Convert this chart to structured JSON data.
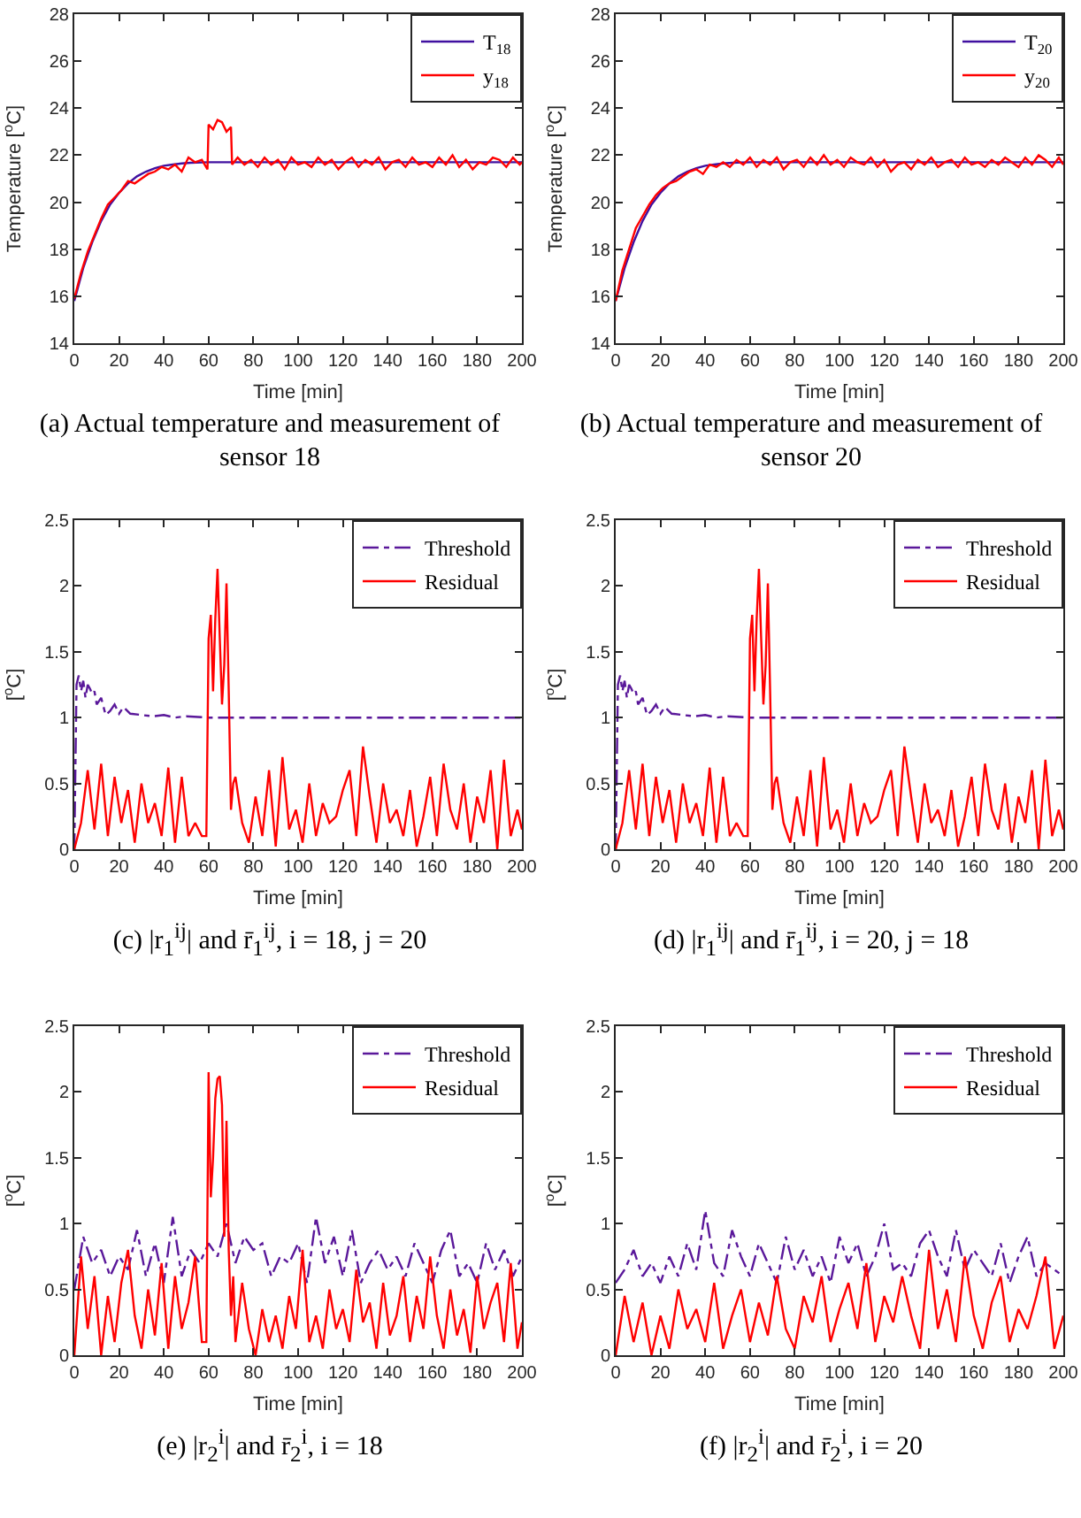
{
  "chart_data": [
    {
      "type": "line",
      "xlabel": "Time [min]",
      "ylabel": "Temperature [$^{o}$C]",
      "xlim": [
        0,
        200
      ],
      "xticks": [
        0,
        20,
        40,
        60,
        80,
        100,
        120,
        140,
        160,
        180,
        200
      ],
      "ylim": [
        14,
        28
      ],
      "yticks": [
        14,
        16,
        18,
        20,
        22,
        24,
        26,
        28
      ],
      "grid": false,
      "legend": "top right",
      "annotations": [
        "(a) Actual temperature and measurement of sensor 18"
      ],
      "series": [
        {
          "name": "T$_{18}$",
          "color": "#4010a0",
          "line_style": "solid",
          "x": [
            0,
            4,
            8,
            12,
            16,
            20,
            24,
            28,
            32,
            36,
            40,
            44,
            48,
            52,
            60,
            80,
            100,
            120,
            140,
            160,
            180,
            200
          ],
          "values": [
            15.8,
            17.2,
            18.3,
            19.2,
            19.9,
            20.4,
            20.8,
            21.1,
            21.3,
            21.45,
            21.55,
            21.6,
            21.65,
            21.68,
            21.7,
            21.7,
            21.7,
            21.7,
            21.7,
            21.7,
            21.7,
            21.7
          ]
        },
        {
          "name": "y$_{18}$",
          "color": "#ff0000",
          "line_style": "solid",
          "x": [
            0,
            3,
            6,
            9,
            12,
            15,
            18,
            21,
            24,
            27,
            30,
            33,
            36,
            39,
            42,
            45,
            48,
            51,
            54,
            57,
            59.5,
            60,
            62,
            64,
            66,
            68,
            70,
            70.5,
            73,
            76,
            79,
            82,
            85,
            88,
            91,
            94,
            97,
            100,
            103,
            106,
            109,
            112,
            115,
            118,
            121,
            124,
            127,
            130,
            133,
            136,
            139,
            142,
            145,
            148,
            151,
            154,
            157,
            160,
            163,
            166,
            169,
            172,
            175,
            178,
            181,
            184,
            187,
            190,
            193,
            196,
            199,
            200
          ],
          "values": [
            15.9,
            17.0,
            17.9,
            18.6,
            19.3,
            19.9,
            20.2,
            20.5,
            20.9,
            20.8,
            21.0,
            21.2,
            21.3,
            21.5,
            21.4,
            21.6,
            21.3,
            21.9,
            21.7,
            21.8,
            21.4,
            23.3,
            23.1,
            23.5,
            23.4,
            23.0,
            23.2,
            21.6,
            21.9,
            21.6,
            21.8,
            21.5,
            21.9,
            21.6,
            21.8,
            21.4,
            21.9,
            21.6,
            21.7,
            21.5,
            21.9,
            21.6,
            21.8,
            21.4,
            21.7,
            21.9,
            21.5,
            21.8,
            21.6,
            21.9,
            21.4,
            21.7,
            21.8,
            21.5,
            21.9,
            21.6,
            21.7,
            21.5,
            21.9,
            21.6,
            22.0,
            21.5,
            21.8,
            21.4,
            21.7,
            21.6,
            21.9,
            21.8,
            21.5,
            21.9,
            21.6,
            21.7
          ]
        }
      ]
    },
    {
      "type": "line",
      "xlabel": "Time [min]",
      "ylabel": "Temperature [$^{o}$C]",
      "xlim": [
        0,
        200
      ],
      "xticks": [
        0,
        20,
        40,
        60,
        80,
        100,
        120,
        140,
        160,
        180,
        200
      ],
      "ylim": [
        14,
        28
      ],
      "yticks": [
        14,
        16,
        18,
        20,
        22,
        24,
        26,
        28
      ],
      "grid": false,
      "legend": "top right",
      "annotations": [
        "(b) Actual temperature and measurement of sensor 20"
      ],
      "series": [
        {
          "name": "T$_{20}$",
          "color": "#4010a0",
          "line_style": "solid",
          "x": [
            0,
            4,
            8,
            12,
            16,
            20,
            24,
            28,
            32,
            36,
            40,
            44,
            48,
            52,
            60,
            80,
            100,
            120,
            140,
            160,
            180,
            200
          ],
          "values": [
            15.8,
            17.2,
            18.3,
            19.2,
            19.9,
            20.4,
            20.8,
            21.1,
            21.3,
            21.45,
            21.55,
            21.6,
            21.65,
            21.68,
            21.7,
            21.7,
            21.7,
            21.7,
            21.7,
            21.7,
            21.7,
            21.7
          ]
        },
        {
          "name": "y$_{20}$",
          "color": "#ff0000",
          "line_style": "solid",
          "x": [
            0,
            3,
            6,
            9,
            12,
            15,
            18,
            21,
            24,
            27,
            30,
            33,
            36,
            39,
            42,
            45,
            48,
            51,
            54,
            57,
            60,
            63,
            66,
            69,
            72,
            75,
            78,
            81,
            84,
            87,
            90,
            93,
            96,
            99,
            102,
            105,
            108,
            111,
            114,
            117,
            120,
            123,
            126,
            129,
            132,
            135,
            138,
            141,
            144,
            147,
            150,
            153,
            156,
            159,
            162,
            165,
            168,
            171,
            174,
            177,
            180,
            183,
            186,
            189,
            192,
            195,
            198,
            200
          ],
          "values": [
            15.8,
            17.1,
            18.0,
            18.9,
            19.4,
            19.9,
            20.3,
            20.6,
            20.8,
            20.9,
            21.1,
            21.3,
            21.4,
            21.2,
            21.6,
            21.5,
            21.7,
            21.5,
            21.8,
            21.6,
            21.9,
            21.5,
            21.8,
            21.6,
            21.9,
            21.4,
            21.7,
            21.8,
            21.5,
            21.9,
            21.6,
            22.0,
            21.6,
            21.8,
            21.5,
            21.9,
            21.7,
            21.6,
            21.9,
            21.5,
            21.8,
            21.3,
            21.6,
            21.7,
            21.4,
            21.8,
            21.6,
            21.9,
            21.5,
            21.7,
            21.8,
            21.5,
            21.9,
            21.6,
            21.7,
            21.5,
            21.8,
            21.6,
            21.9,
            21.7,
            21.5,
            21.9,
            21.6,
            22.0,
            21.8,
            21.5,
            21.9,
            21.6
          ]
        }
      ]
    },
    {
      "type": "line",
      "xlabel": "Time [min]",
      "ylabel": "[$^{o}$C]",
      "xlim": [
        0,
        200
      ],
      "xticks": [
        0,
        20,
        40,
        60,
        80,
        100,
        120,
        140,
        160,
        180,
        200
      ],
      "ylim": [
        0,
        2.5
      ],
      "yticks": [
        0,
        0.5,
        1,
        1.5,
        2,
        2.5
      ],
      "grid": false,
      "legend": "top right",
      "annotations": [
        "(c) |r$_{1}$$^{ij}$| and r̄$_{1}$$^{ij}$, i = 18, j = 20"
      ],
      "series": [
        {
          "name": "Threshold",
          "color": "#5a189a",
          "line_style": "dashdot",
          "x": [
            0,
            1,
            2,
            3,
            4,
            5,
            6,
            7,
            8,
            9,
            10,
            12,
            14,
            16,
            18,
            20,
            22,
            25,
            30,
            35,
            40,
            45,
            50,
            60,
            100,
            150,
            200
          ],
          "values": [
            0,
            1.25,
            1.32,
            1.2,
            1.28,
            1.15,
            1.25,
            1.22,
            1.18,
            1.2,
            1.1,
            1.15,
            1.02,
            1.05,
            1.1,
            1.03,
            1.08,
            1.03,
            1.02,
            1.01,
            1.02,
            1.0,
            1.01,
            1.0,
            1.0,
            1.0,
            1.0
          ]
        },
        {
          "name": "Residual",
          "color": "#ff0000",
          "line_style": "solid",
          "x": [
            0,
            3,
            6,
            9,
            12,
            15,
            18,
            21,
            24,
            27,
            30,
            33,
            36,
            39,
            42,
            45,
            48,
            51,
            54,
            57,
            59,
            60,
            61,
            62,
            63,
            64,
            65,
            66,
            67,
            68,
            69,
            70,
            71,
            72,
            75,
            78,
            81,
            84,
            87,
            90,
            93,
            96,
            99,
            102,
            105,
            108,
            111,
            114,
            117,
            120,
            123,
            126,
            129,
            132,
            135,
            138,
            141,
            144,
            147,
            150,
            153,
            156,
            159,
            162,
            165,
            168,
            171,
            174,
            177,
            180,
            183,
            186,
            189,
            192,
            195,
            198,
            200
          ],
          "values": [
            0,
            0.2,
            0.6,
            0.15,
            0.65,
            0.1,
            0.55,
            0.2,
            0.45,
            0.05,
            0.5,
            0.2,
            0.35,
            0.1,
            0.62,
            0.05,
            0.55,
            0.1,
            0.2,
            0.1,
            0.1,
            1.6,
            1.78,
            1.2,
            1.75,
            2.13,
            1.6,
            1.1,
            1.4,
            2.02,
            1.2,
            0.3,
            0.5,
            0.55,
            0.2,
            0.05,
            0.4,
            0.1,
            0.6,
            0.02,
            0.7,
            0.15,
            0.3,
            0.05,
            0.5,
            0.1,
            0.35,
            0.2,
            0.25,
            0.45,
            0.6,
            0.1,
            0.78,
            0.4,
            0.05,
            0.5,
            0.2,
            0.3,
            0.1,
            0.45,
            0.02,
            0.25,
            0.55,
            0.1,
            0.65,
            0.3,
            0.15,
            0.5,
            0.05,
            0.4,
            0.2,
            0.6,
            0.0,
            0.68,
            0.1,
            0.3,
            0.15
          ]
        }
      ]
    },
    {
      "type": "line",
      "xlabel": "Time [min]",
      "ylabel": "[$^{o}$C]",
      "xlim": [
        0,
        200
      ],
      "xticks": [
        0,
        20,
        40,
        60,
        80,
        100,
        120,
        140,
        160,
        180,
        200
      ],
      "ylim": [
        0,
        2.5
      ],
      "yticks": [
        0,
        0.5,
        1,
        1.5,
        2,
        2.5
      ],
      "grid": false,
      "legend": "top right",
      "annotations": [
        "(d) |r$_{1}$$^{ij}$| and r̄$_{1}$$^{ij}$, i = 20, j = 18"
      ],
      "series": [
        {
          "name": "Threshold",
          "color": "#5a189a",
          "line_style": "dashdot",
          "x": [
            0,
            1,
            2,
            3,
            4,
            5,
            6,
            7,
            8,
            9,
            10,
            12,
            14,
            16,
            18,
            20,
            22,
            25,
            30,
            35,
            40,
            45,
            50,
            60,
            100,
            150,
            200
          ],
          "values": [
            0,
            1.25,
            1.32,
            1.2,
            1.28,
            1.15,
            1.25,
            1.22,
            1.18,
            1.2,
            1.1,
            1.15,
            1.02,
            1.05,
            1.1,
            1.03,
            1.08,
            1.03,
            1.02,
            1.01,
            1.02,
            1.0,
            1.01,
            1.0,
            1.0,
            1.0,
            1.0
          ]
        },
        {
          "name": "Residual",
          "color": "#ff0000",
          "line_style": "solid",
          "x": [
            0,
            3,
            6,
            9,
            12,
            15,
            18,
            21,
            24,
            27,
            30,
            33,
            36,
            39,
            42,
            45,
            48,
            51,
            54,
            57,
            59,
            60,
            61,
            62,
            63,
            64,
            65,
            66,
            67,
            68,
            69,
            70,
            71,
            72,
            75,
            78,
            81,
            84,
            87,
            90,
            93,
            96,
            99,
            102,
            105,
            108,
            111,
            114,
            117,
            120,
            123,
            126,
            129,
            132,
            135,
            138,
            141,
            144,
            147,
            150,
            153,
            156,
            159,
            162,
            165,
            168,
            171,
            174,
            177,
            180,
            183,
            186,
            189,
            192,
            195,
            198,
            200
          ],
          "values": [
            0,
            0.2,
            0.6,
            0.15,
            0.65,
            0.1,
            0.55,
            0.2,
            0.45,
            0.05,
            0.5,
            0.2,
            0.35,
            0.1,
            0.62,
            0.05,
            0.55,
            0.1,
            0.2,
            0.1,
            0.1,
            1.6,
            1.78,
            1.2,
            1.75,
            2.13,
            1.6,
            1.1,
            1.4,
            2.02,
            1.2,
            0.3,
            0.5,
            0.55,
            0.2,
            0.05,
            0.4,
            0.1,
            0.6,
            0.02,
            0.7,
            0.15,
            0.3,
            0.05,
            0.5,
            0.1,
            0.35,
            0.2,
            0.25,
            0.45,
            0.6,
            0.1,
            0.78,
            0.4,
            0.05,
            0.5,
            0.2,
            0.3,
            0.1,
            0.45,
            0.02,
            0.25,
            0.55,
            0.1,
            0.65,
            0.3,
            0.15,
            0.5,
            0.05,
            0.4,
            0.2,
            0.6,
            0.0,
            0.68,
            0.1,
            0.3,
            0.15
          ]
        }
      ]
    },
    {
      "type": "line",
      "xlabel": "Time [min]",
      "ylabel": "[$^{o}$C]",
      "xlim": [
        0,
        200
      ],
      "xticks": [
        0,
        20,
        40,
        60,
        80,
        100,
        120,
        140,
        160,
        180,
        200
      ],
      "ylim": [
        0,
        2.5
      ],
      "yticks": [
        0,
        0.5,
        1,
        1.5,
        2,
        2.5
      ],
      "grid": false,
      "legend": "top right",
      "annotations": [
        "(e) |r$_{2}$$^{i}$| and r̄$_{2}$$^{i}$, i = 18"
      ],
      "series": [
        {
          "name": "Threshold",
          "color": "#5a189a",
          "line_style": "dashdot",
          "x": [
            0,
            4,
            8,
            12,
            16,
            20,
            24,
            28,
            32,
            36,
            40,
            44,
            48,
            52,
            56,
            60,
            64,
            68,
            72,
            76,
            80,
            84,
            88,
            92,
            96,
            100,
            104,
            108,
            112,
            116,
            120,
            124,
            128,
            132,
            136,
            140,
            144,
            148,
            152,
            156,
            160,
            164,
            168,
            172,
            176,
            180,
            184,
            188,
            192,
            196,
            200
          ],
          "values": [
            0.5,
            0.9,
            0.7,
            0.8,
            0.6,
            0.75,
            0.65,
            0.95,
            0.6,
            0.85,
            0.55,
            1.05,
            0.6,
            0.8,
            0.7,
            0.85,
            0.75,
            1.0,
            0.7,
            0.9,
            0.8,
            0.85,
            0.6,
            0.75,
            0.7,
            0.85,
            0.55,
            1.05,
            0.7,
            0.9,
            0.6,
            0.95,
            0.55,
            0.7,
            0.8,
            0.65,
            0.75,
            0.6,
            0.85,
            0.7,
            0.55,
            0.8,
            0.95,
            0.6,
            0.7,
            0.55,
            0.85,
            0.65,
            0.8,
            0.6,
            0.75
          ]
        },
        {
          "name": "Residual",
          "color": "#ff0000",
          "line_style": "solid",
          "x": [
            0,
            3,
            6,
            9,
            12,
            15,
            18,
            21,
            24,
            27,
            30,
            33,
            36,
            39,
            42,
            45,
            48,
            51,
            54,
            57,
            59,
            60,
            61,
            62,
            63,
            64,
            65,
            66,
            67,
            68,
            69,
            70,
            71,
            72,
            75,
            78,
            81,
            84,
            87,
            90,
            93,
            96,
            99,
            102,
            105,
            108,
            111,
            114,
            117,
            120,
            123,
            126,
            129,
            132,
            135,
            138,
            141,
            144,
            147,
            150,
            153,
            156,
            159,
            162,
            165,
            168,
            171,
            174,
            177,
            180,
            183,
            186,
            189,
            192,
            195,
            198,
            200
          ],
          "values": [
            0,
            0.75,
            0.2,
            0.6,
            0.0,
            0.45,
            0.1,
            0.55,
            0.8,
            0.3,
            0.05,
            0.5,
            0.15,
            0.7,
            0.05,
            0.6,
            0.2,
            0.4,
            0.75,
            0.1,
            0.1,
            2.15,
            1.2,
            1.5,
            1.95,
            2.1,
            2.12,
            1.9,
            0.9,
            1.78,
            0.8,
            0.3,
            0.6,
            0.1,
            0.55,
            0.2,
            0.0,
            0.35,
            0.1,
            0.3,
            0.05,
            0.45,
            0.2,
            0.8,
            0.1,
            0.3,
            0.05,
            0.5,
            0.2,
            0.35,
            0.1,
            0.65,
            0.25,
            0.4,
            0.05,
            0.55,
            0.15,
            0.3,
            0.6,
            0.1,
            0.45,
            0.2,
            0.75,
            0.3,
            0.05,
            0.5,
            0.15,
            0.35,
            0.02,
            0.6,
            0.2,
            0.4,
            0.55,
            0.1,
            0.7,
            0.05,
            0.25
          ]
        }
      ]
    },
    {
      "type": "line",
      "xlabel": "Time [min]",
      "ylabel": "[$^{o}$C]",
      "xlim": [
        0,
        200
      ],
      "xticks": [
        0,
        20,
        40,
        60,
        80,
        100,
        120,
        140,
        160,
        180,
        200
      ],
      "ylim": [
        0,
        2.5
      ],
      "yticks": [
        0,
        0.5,
        1,
        1.5,
        2,
        2.5
      ],
      "grid": false,
      "legend": "top right",
      "annotations": [
        "(f) |r$_{2}$$^{i}$| and r̄$_{2}$$^{i}$, i = 20"
      ],
      "series": [
        {
          "name": "Threshold",
          "color": "#5a189a",
          "line_style": "dashdot",
          "x": [
            0,
            4,
            8,
            12,
            16,
            20,
            24,
            28,
            32,
            36,
            40,
            44,
            48,
            52,
            56,
            60,
            64,
            68,
            72,
            76,
            80,
            84,
            88,
            92,
            96,
            100,
            104,
            108,
            112,
            116,
            120,
            124,
            128,
            132,
            136,
            140,
            144,
            148,
            152,
            156,
            160,
            164,
            168,
            172,
            176,
            180,
            184,
            188,
            192,
            196,
            200
          ],
          "values": [
            0.55,
            0.65,
            0.8,
            0.6,
            0.7,
            0.55,
            0.75,
            0.6,
            0.85,
            0.65,
            1.1,
            0.7,
            0.6,
            0.95,
            0.75,
            0.6,
            0.85,
            0.7,
            0.55,
            0.9,
            0.65,
            0.8,
            0.6,
            0.75,
            0.55,
            0.9,
            0.7,
            0.85,
            0.6,
            0.75,
            1.0,
            0.65,
            0.7,
            0.6,
            0.85,
            0.95,
            0.75,
            0.6,
            0.95,
            0.65,
            0.8,
            0.7,
            0.6,
            0.85,
            0.55,
            0.75,
            0.9,
            0.6,
            0.7,
            0.65,
            0.6
          ]
        },
        {
          "name": "Residual",
          "color": "#ff0000",
          "line_style": "solid",
          "x": [
            0,
            4,
            8,
            12,
            16,
            20,
            24,
            28,
            32,
            36,
            40,
            44,
            48,
            52,
            56,
            60,
            64,
            68,
            72,
            76,
            80,
            84,
            88,
            92,
            96,
            100,
            104,
            108,
            112,
            116,
            120,
            124,
            128,
            132,
            136,
            140,
            144,
            148,
            152,
            156,
            160,
            164,
            168,
            172,
            176,
            180,
            184,
            188,
            192,
            196,
            200
          ],
          "values": [
            0,
            0.45,
            0.1,
            0.4,
            0.0,
            0.3,
            0.05,
            0.5,
            0.2,
            0.35,
            0.1,
            0.55,
            0.05,
            0.3,
            0.5,
            0.1,
            0.4,
            0.15,
            0.6,
            0.2,
            0.05,
            0.45,
            0.25,
            0.6,
            0.1,
            0.35,
            0.55,
            0.2,
            0.7,
            0.1,
            0.45,
            0.25,
            0.6,
            0.3,
            0.05,
            0.8,
            0.2,
            0.5,
            0.1,
            0.75,
            0.3,
            0.05,
            0.4,
            0.6,
            0.1,
            0.35,
            0.2,
            0.45,
            0.75,
            0.05,
            0.3
          ]
        }
      ]
    }
  ]
}
